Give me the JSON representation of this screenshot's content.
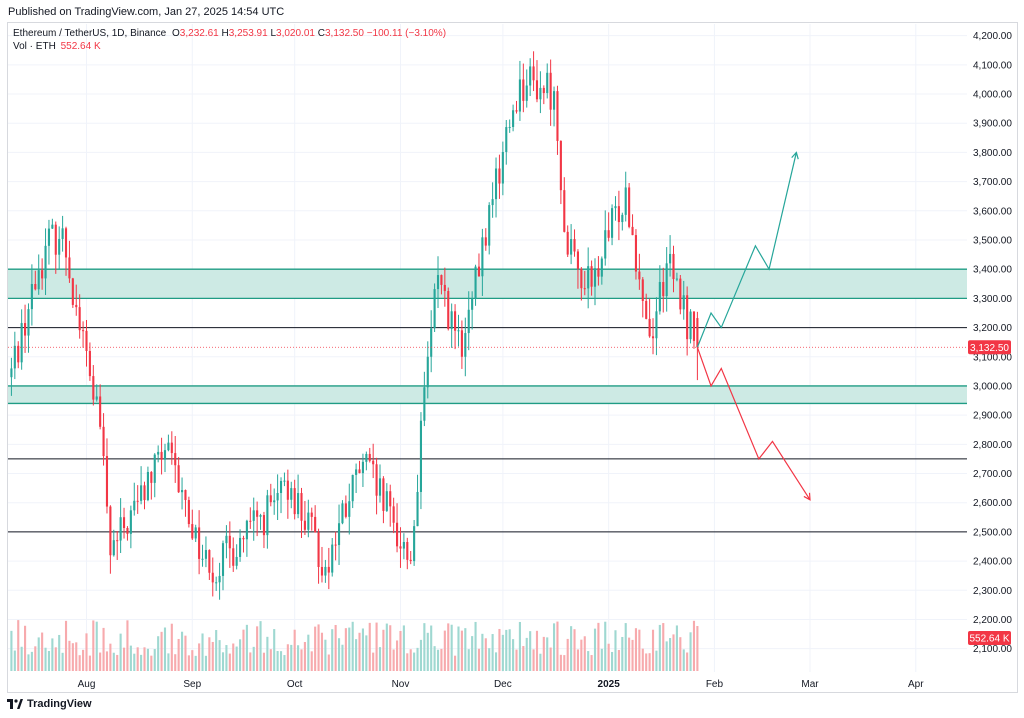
{
  "header": {
    "published": "Published on TradingView.com, Jan 27, 2025 14:54 UTC"
  },
  "legend": {
    "symbol": "Ethereum / TetherUS, 1D, Binance",
    "o_label": "O",
    "o": "3,232.61",
    "h_label": "H",
    "h": "3,253.91",
    "l_label": "L",
    "l": "3,020.01",
    "c_label": "C",
    "c": "3,132.50",
    "change": "−100.11 (−3.10%)",
    "vol_label": "Vol · ETH",
    "vol": "552.64 K"
  },
  "footer": {
    "brand": "TradingView",
    "logo_icon": "tradingview-logo-icon"
  },
  "colors": {
    "up": "#26a69a",
    "down": "#f23645",
    "zone_fill": "#cdeae4",
    "zone_line": "#1f9c84",
    "vol_up": "#9fd8d1",
    "vol_down": "#f7aaad",
    "grid": "#f0f3fa"
  },
  "chart_data": {
    "type": "candlestick",
    "symbol": "ETH/USDT",
    "interval": "1D",
    "ylim": [
      2020,
      4240
    ],
    "y_ticks": [
      "4,200.00",
      "4,100.00",
      "4,000.00",
      "3,900.00",
      "3,800.00",
      "3,700.00",
      "3,600.00",
      "3,500.00",
      "3,400.00",
      "3,300.00",
      "3,200.00",
      "3,100.00",
      "3,000.00",
      "2,900.00",
      "2,800.00",
      "2,700.00",
      "2,600.00",
      "2,500.00",
      "2,400.00",
      "2,300.00",
      "2,200.00",
      "2,100.00"
    ],
    "y_tick_values": [
      4200,
      4100,
      4000,
      3900,
      3800,
      3700,
      3600,
      3500,
      3400,
      3300,
      3200,
      3100,
      3000,
      2900,
      2800,
      2700,
      2600,
      2500,
      2400,
      2300,
      2200,
      2100
    ],
    "x_ticks": [
      {
        "label": "Aug",
        "date": "2024-08-01"
      },
      {
        "label": "Sep",
        "date": "2024-09-01"
      },
      {
        "label": "Oct",
        "date": "2024-10-01"
      },
      {
        "label": "Nov",
        "date": "2024-11-01"
      },
      {
        "label": "Dec",
        "date": "2024-12-01"
      },
      {
        "label": "2025",
        "date": "2025-01-01"
      },
      {
        "label": "Feb",
        "date": "2025-02-01"
      },
      {
        "label": "Mar",
        "date": "2025-03-01"
      },
      {
        "label": "Apr",
        "date": "2025-04-01"
      }
    ],
    "x_range": [
      "2024-07-09",
      "2025-04-16"
    ],
    "first_date": "2024-07-10",
    "last_price": 3132.5,
    "last_price_label": "3,132.50",
    "last_volume_label": "552.64 K",
    "key_closes": [
      {
        "date": "2024-07-10",
        "close": 3060
      },
      {
        "date": "2024-07-20",
        "close": 3480
      },
      {
        "date": "2024-07-25",
        "close": 3540
      },
      {
        "date": "2024-07-29",
        "close": 3270
      },
      {
        "date": "2024-08-05",
        "close": 2860
      },
      {
        "date": "2024-08-08",
        "close": 2420
      },
      {
        "date": "2024-08-24",
        "close": 2780
      },
      {
        "date": "2024-09-06",
        "close": 2360
      },
      {
        "date": "2024-09-30",
        "close": 2650
      },
      {
        "date": "2024-10-10",
        "close": 2380
      },
      {
        "date": "2024-10-21",
        "close": 2740
      },
      {
        "date": "2024-11-04",
        "close": 2400
      },
      {
        "date": "2024-11-09",
        "close": 3100
      },
      {
        "date": "2024-11-12",
        "close": 3380
      },
      {
        "date": "2024-11-19",
        "close": 3100
      },
      {
        "date": "2024-11-28",
        "close": 3640
      },
      {
        "date": "2024-12-06",
        "close": 4050
      },
      {
        "date": "2024-12-16",
        "close": 4010
      },
      {
        "date": "2024-12-20",
        "close": 3450
      },
      {
        "date": "2024-12-27",
        "close": 3340
      },
      {
        "date": "2025-01-06",
        "close": 3680
      },
      {
        "date": "2025-01-13",
        "close": 3170
      },
      {
        "date": "2025-01-18",
        "close": 3420
      },
      {
        "date": "2025-01-27",
        "close": 3132.5
      }
    ],
    "zones": [
      {
        "from": 3300,
        "to": 3400
      },
      {
        "from": 2940,
        "to": 3000
      }
    ],
    "horizontal_levels": [
      3200,
      2750,
      2500
    ],
    "projection_bull": [
      {
        "date": "2025-01-27",
        "price": 3132.5
      },
      {
        "date": "2025-01-31",
        "price": 3250
      },
      {
        "date": "2025-02-03",
        "price": 3200
      },
      {
        "date": "2025-02-13",
        "price": 3480
      },
      {
        "date": "2025-02-17",
        "price": 3400
      },
      {
        "date": "2025-02-25",
        "price": 3800
      }
    ],
    "projection_bear": [
      {
        "date": "2025-01-27",
        "price": 3132.5
      },
      {
        "date": "2025-01-31",
        "price": 3000
      },
      {
        "date": "2025-02-03",
        "price": 3060
      },
      {
        "date": "2025-02-14",
        "price": 2750
      },
      {
        "date": "2025-02-18",
        "price": 2810
      },
      {
        "date": "2025-03-01",
        "price": 2610
      }
    ],
    "candles": []
  }
}
